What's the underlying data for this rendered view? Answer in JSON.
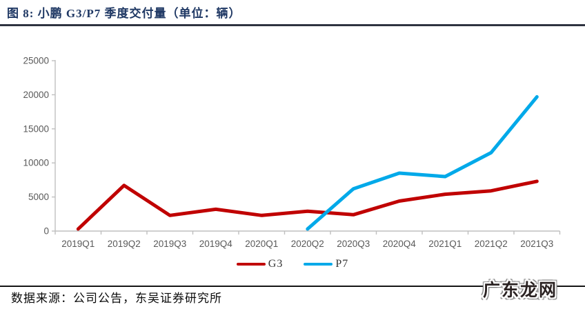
{
  "figure": {
    "title": "图 8:  小鹏 G3/P7 季度交付量（单位：辆）",
    "source": "数据来源：公司公告，东吴证券研究所",
    "watermark": "广东龙网"
  },
  "colors": {
    "title_navy": "#1f3864",
    "g3_red": "#c00000",
    "p7_blue": "#00a9e9",
    "axis_line": "#bfbfbf",
    "tick_label": "#595959",
    "footer_rule": "#141414"
  },
  "chart_data": {
    "type": "line",
    "title": "小鹏 G3/P7 季度交付量（单位：辆）",
    "categories": [
      "2019Q1",
      "2019Q2",
      "2019Q3",
      "2019Q4",
      "2020Q1",
      "2020Q2",
      "2020Q3",
      "2020Q4",
      "2021Q1",
      "2021Q2",
      "2021Q3"
    ],
    "series": [
      {
        "name": "G3",
        "color": "#c00000",
        "values": [
          300,
          6700,
          2300,
          3200,
          2300,
          2900,
          2400,
          4400,
          5400,
          5900,
          7300
        ]
      },
      {
        "name": "P7",
        "color": "#00a9e9",
        "values": [
          null,
          null,
          null,
          null,
          null,
          300,
          6200,
          8500,
          8000,
          11500,
          19700
        ]
      }
    ],
    "ylim": [
      0,
      25000
    ],
    "ytick_step": 5000,
    "yticks": [
      "0",
      "5000",
      "10000",
      "15000",
      "20000",
      "25000"
    ],
    "xlabel": "",
    "ylabel": "",
    "grid": false,
    "legend_position": "bottom"
  }
}
